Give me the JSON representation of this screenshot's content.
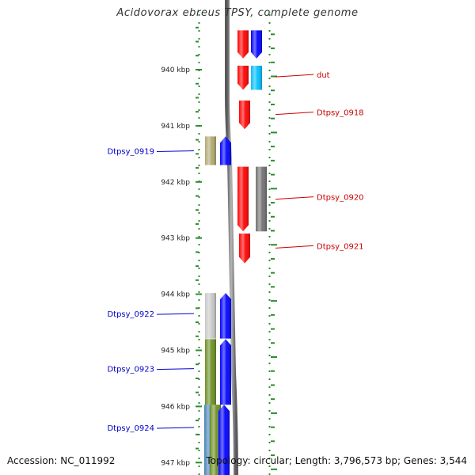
{
  "title": "Acidovorax ebreus TPSY, complete genome",
  "footer": {
    "accession": "Accession: NC_011992",
    "summary": "Topology: circular; Length: 3,796,573 bp; Genes: 3,544"
  },
  "colors": {
    "background": "#ffffff",
    "ruler_tick": "#2e8b2e",
    "backbone": "#8a8a8a",
    "label_red": "#cc0000",
    "label_blue": "#0000cc"
  },
  "scale_labels": [
    "940 kbp",
    "941 kbp",
    "942 kbp",
    "943 kbp",
    "944 kbp",
    "945 kbp",
    "946 kbp",
    "947 kbp"
  ],
  "scale_kbp": [
    940,
    941,
    942,
    943,
    944,
    945,
    946,
    947
  ],
  "genes": [
    {
      "strand": "plus",
      "start_kbp": 939.3,
      "end_kbp": 939.8,
      "color": "#ff0000"
    },
    {
      "strand": "plus",
      "start_kbp": 939.3,
      "end_kbp": 939.8,
      "color": "#0000ff"
    },
    {
      "strand": "plus",
      "start_kbp": 939.93,
      "end_kbp": 940.36,
      "color": "#ff0000"
    },
    {
      "strand": "plus",
      "start_kbp": 939.93,
      "end_kbp": 940.36,
      "color": "#00bfff"
    },
    {
      "strand": "plus",
      "start_kbp": 940.55,
      "end_kbp": 941.06,
      "color": "#ff0000"
    },
    {
      "strand": "minus",
      "start_kbp": 941.19,
      "end_kbp": 941.7,
      "color": "#b0a870"
    },
    {
      "strand": "minus",
      "start_kbp": 941.19,
      "end_kbp": 941.7,
      "color": "#0000ff"
    },
    {
      "strand": "plus",
      "start_kbp": 941.73,
      "end_kbp": 942.88,
      "color": "#ff0000"
    },
    {
      "strand": "plus",
      "start_kbp": 941.73,
      "end_kbp": 942.88,
      "color": "#707070"
    },
    {
      "strand": "plus",
      "start_kbp": 942.92,
      "end_kbp": 943.45,
      "color": "#ff0000"
    },
    {
      "strand": "minus",
      "start_kbp": 943.98,
      "end_kbp": 944.79,
      "color": "#c8c8c8"
    },
    {
      "strand": "minus",
      "start_kbp": 943.98,
      "end_kbp": 944.79,
      "color": "#0000ff"
    },
    {
      "strand": "minus",
      "start_kbp": 944.8,
      "end_kbp": 945.97,
      "color": "#6b8e23"
    },
    {
      "strand": "minus",
      "start_kbp": 944.8,
      "end_kbp": 945.97,
      "color": "#0000ff"
    },
    {
      "strand": "minus",
      "start_kbp": 945.97,
      "end_kbp": 947.3,
      "color": "#4682b4"
    },
    {
      "strand": "minus",
      "start_kbp": 945.97,
      "end_kbp": 947.3,
      "color": "#6b8e23"
    },
    {
      "strand": "minus",
      "start_kbp": 945.97,
      "end_kbp": 947.3,
      "color": "#0000ff"
    }
  ],
  "gene_labels": [
    {
      "text": "dut",
      "side": "right",
      "kbp": 940.1,
      "color": "#cc0000"
    },
    {
      "text": "Dtpsy_0918",
      "side": "right",
      "kbp": 940.77,
      "color": "#cc0000"
    },
    {
      "text": "Dtpsy_0919",
      "side": "left",
      "kbp": 941.46,
      "color": "#0000cc"
    },
    {
      "text": "Dtpsy_0920",
      "side": "right",
      "kbp": 942.28,
      "color": "#cc0000"
    },
    {
      "text": "Dtpsy_0921",
      "side": "right",
      "kbp": 943.15,
      "color": "#cc0000"
    },
    {
      "text": "Dtpsy_0922",
      "side": "left",
      "kbp": 944.36,
      "color": "#0000cc"
    },
    {
      "text": "Dtpsy_0923",
      "side": "left",
      "kbp": 945.34,
      "color": "#0000cc"
    },
    {
      "text": "Dtpsy_0924",
      "side": "left",
      "kbp": 946.39,
      "color": "#0000cc"
    }
  ]
}
